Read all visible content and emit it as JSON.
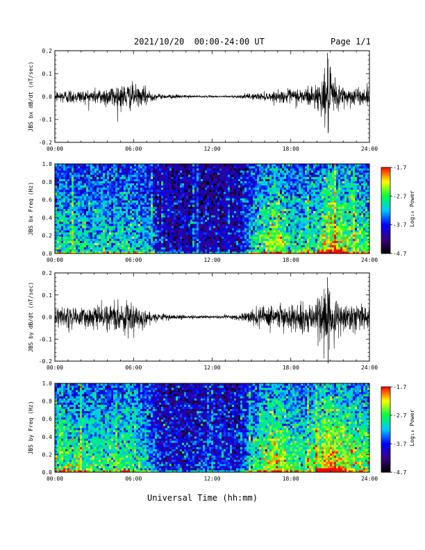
{
  "header": {
    "date_range": "2021/10/20  00:00-24:00 UT",
    "page": "Page 1/1"
  },
  "x_axis_title": "Universal Time (hh:mm)",
  "colorbar": {
    "label": "Log₁₀ Power",
    "ticks": [
      "-1.7",
      "-2.7",
      "-3.7",
      "-4.7"
    ],
    "range": [
      -4.7,
      -1.7
    ],
    "colors": [
      "#000000",
      "#3a0080",
      "#0000ff",
      "#00c8ff",
      "#00ff40",
      "#ffff00",
      "#ff0000"
    ]
  },
  "chart_data": [
    {
      "type": "line",
      "ylabel": "JBS bx dB/dt (nT/sec)",
      "xlim": [
        0,
        24
      ],
      "ylim": [
        -0.2,
        0.2
      ],
      "xticks": [
        "00:00",
        "06:00",
        "12:00",
        "18:00",
        "24:00"
      ],
      "yticks": [
        "0.2",
        "0.1",
        "0.0",
        "-0.1",
        "-0.2"
      ],
      "envelope": {
        "hours": [
          0,
          1,
          2,
          3,
          4,
          5,
          6,
          6.5,
          7,
          7.5,
          8,
          9,
          10,
          11,
          12,
          13,
          14,
          15,
          16,
          17,
          18,
          19,
          20,
          20.5,
          20.8,
          21,
          21.5,
          22,
          23,
          24
        ],
        "amplitude": [
          0.02,
          0.03,
          0.025,
          0.03,
          0.04,
          0.05,
          0.05,
          0.03,
          0.04,
          0.015,
          0.01,
          0.008,
          0.006,
          0.004,
          0.004,
          0.004,
          0.006,
          0.012,
          0.015,
          0.02,
          0.03,
          0.035,
          0.05,
          0.08,
          0.14,
          0.1,
          0.06,
          0.04,
          0.035,
          0.03
        ]
      },
      "peak": {
        "hour": 20.8,
        "value": 0.19,
        "min_value": -0.16
      }
    },
    {
      "type": "heatmap",
      "ylabel": "JBS bx Freq (Hz)",
      "xlim": [
        0,
        24
      ],
      "ylim": [
        0.0,
        1.0
      ],
      "xticks": [
        "00:00",
        "06:00",
        "12:00",
        "18:00",
        "24:00"
      ],
      "yticks": [
        "1.0",
        "0.8",
        "0.6",
        "0.4",
        "0.2",
        "0.0"
      ],
      "activity": {
        "hours": [
          0,
          2,
          4,
          6,
          7,
          8,
          10,
          12,
          14,
          15,
          16,
          17,
          18,
          19,
          20,
          21,
          22,
          23,
          24
        ],
        "level": [
          0.45,
          0.42,
          0.4,
          0.42,
          0.35,
          0.12,
          0.08,
          0.07,
          0.1,
          0.35,
          0.55,
          0.65,
          0.45,
          0.4,
          0.5,
          0.72,
          0.6,
          0.55,
          0.5
        ]
      }
    },
    {
      "type": "line",
      "ylabel": "JBS by dB/dt (nT/sec)",
      "xlim": [
        0,
        24
      ],
      "ylim": [
        -0.2,
        0.2
      ],
      "xticks": [
        "00:00",
        "06:00",
        "12:00",
        "18:00",
        "24:00"
      ],
      "yticks": [
        "0.2",
        "0.1",
        "0.0",
        "-0.1",
        "-0.2"
      ],
      "envelope": {
        "hours": [
          0,
          1,
          2,
          3,
          4,
          5,
          6,
          6.5,
          7,
          7.5,
          8,
          9,
          10,
          11,
          12,
          13,
          14,
          15,
          16,
          17,
          18,
          19,
          20,
          20.5,
          20.8,
          21,
          21.5,
          22,
          23,
          24
        ],
        "amplitude": [
          0.04,
          0.05,
          0.04,
          0.04,
          0.05,
          0.06,
          0.06,
          0.04,
          0.04,
          0.02,
          0.012,
          0.01,
          0.008,
          0.006,
          0.006,
          0.008,
          0.012,
          0.03,
          0.04,
          0.045,
          0.05,
          0.06,
          0.07,
          0.1,
          0.15,
          0.12,
          0.08,
          0.06,
          0.06,
          0.05
        ]
      },
      "peak": {
        "hour": 20.8,
        "value": 0.18,
        "min_value": -0.21
      }
    },
    {
      "type": "heatmap",
      "ylabel": "JBS by Freq (Hz)",
      "xlim": [
        0,
        24
      ],
      "ylim": [
        0.0,
        1.0
      ],
      "xticks": [
        "00:00",
        "06:00",
        "12:00",
        "18:00",
        "24:00"
      ],
      "yticks": [
        "1.0",
        "0.8",
        "0.6",
        "0.4",
        "0.2",
        "0.0"
      ],
      "activity": {
        "hours": [
          0,
          2,
          4,
          6,
          7,
          8,
          10,
          12,
          14,
          15,
          16,
          17,
          18,
          19,
          20,
          21,
          22,
          23,
          24
        ],
        "level": [
          0.55,
          0.5,
          0.48,
          0.5,
          0.42,
          0.15,
          0.15,
          0.18,
          0.15,
          0.4,
          0.6,
          0.72,
          0.55,
          0.5,
          0.6,
          0.78,
          0.65,
          0.6,
          0.55
        ]
      }
    }
  ]
}
